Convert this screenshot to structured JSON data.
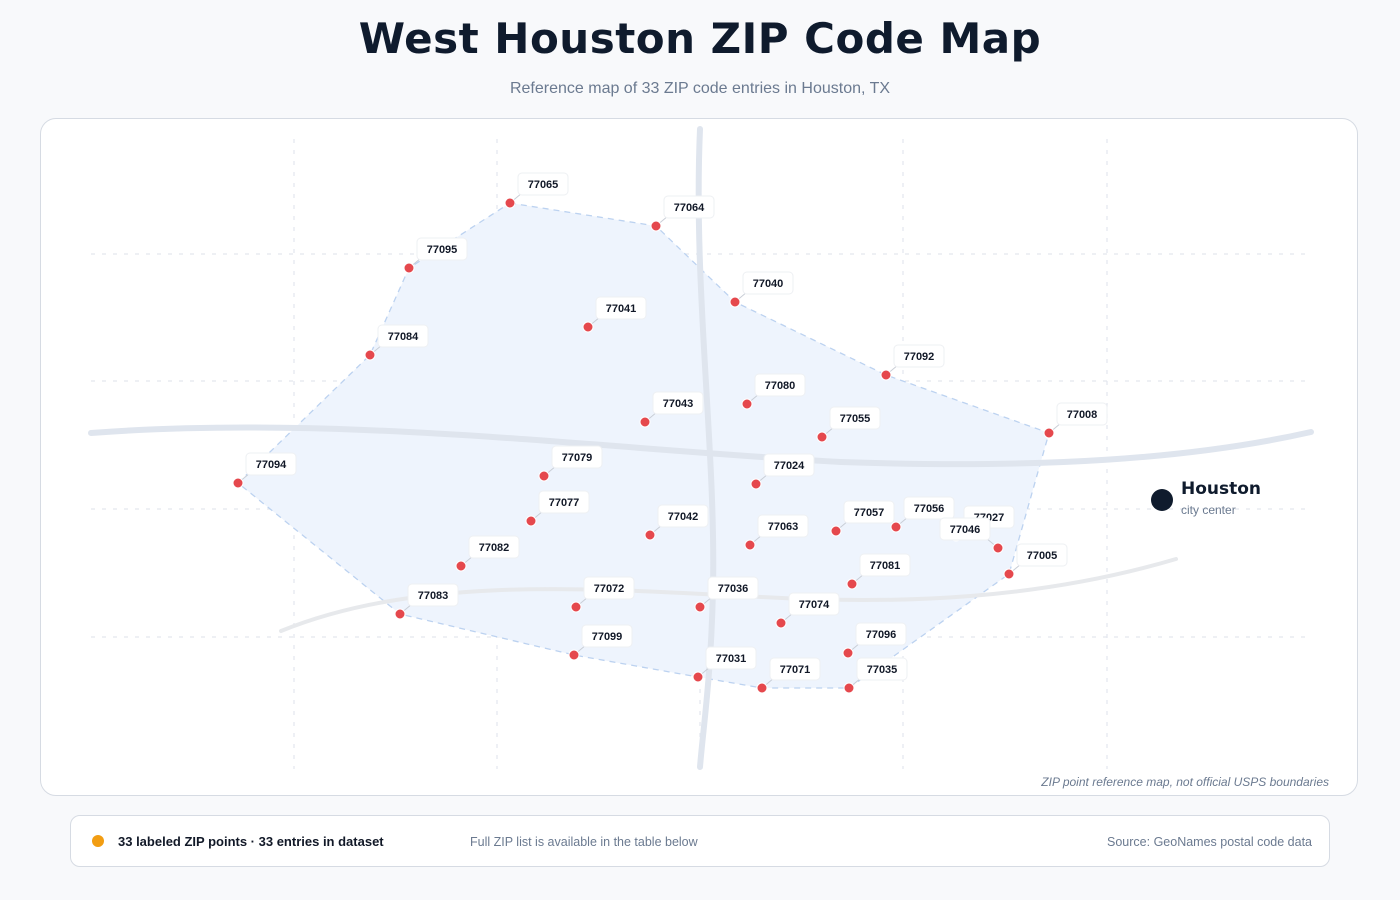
{
  "title": "West Houston ZIP Code Map",
  "subtitle": "Reference map of 33 ZIP code entries in Houston, TX",
  "city": {
    "name": "Houston",
    "caption": "city center"
  },
  "disclaimer": "ZIP point reference map, not official USPS boundaries",
  "footer": {
    "summary": "33 labeled ZIP points · 33 entries in dataset",
    "note": "Full ZIP list is available in the table below",
    "source": "Source: GeoNames postal code data"
  },
  "colors": {
    "marker": "#e5484d",
    "city_marker": "#0f1b2d",
    "area_fill": "#eef4fd",
    "area_stroke": "#bcd2f0",
    "road": "#dfe5ee",
    "legend_dot": "#f29d12"
  },
  "zip_codes": [
    "77065",
    "77064",
    "77095",
    "77040",
    "77041",
    "77084",
    "77092",
    "77080",
    "77043",
    "77055",
    "77008",
    "77094",
    "77079",
    "77024",
    "77077",
    "77042",
    "77063",
    "77057",
    "77056",
    "77027",
    "77082",
    "77046",
    "77005",
    "77081",
    "77083",
    "77072",
    "77036",
    "77074",
    "77099",
    "77096",
    "77031",
    "77071",
    "77035"
  ]
}
